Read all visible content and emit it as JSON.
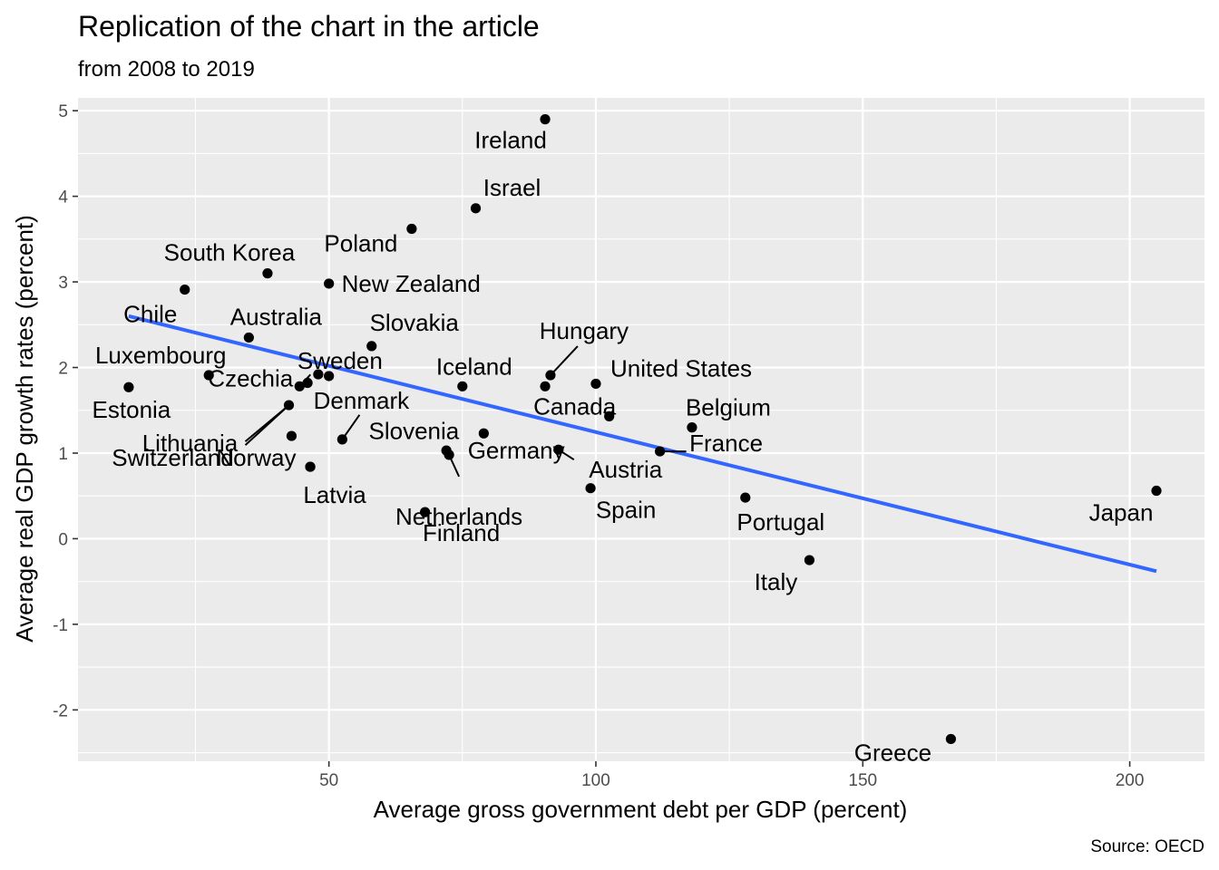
{
  "chart_data": {
    "type": "scatter",
    "title": "Replication of the chart in the article",
    "subtitle": "from 2008 to 2019",
    "xlabel": "Average gross government debt per GDP (percent)",
    "ylabel": "Average real GDP growth rates (percent)",
    "caption": "Source: OECD",
    "xlim": [
      3,
      214
    ],
    "ylim": [
      -2.6,
      5.15
    ],
    "x_ticks": [
      50,
      100,
      150,
      200
    ],
    "y_ticks": [
      -2,
      -1,
      0,
      1,
      2,
      3,
      4,
      5
    ],
    "grid": true,
    "colors": {
      "panel_background": "#ebebeb",
      "grid": "#ffffff",
      "points": "#000000",
      "trend_line": "#3366ff"
    },
    "trend_line": {
      "x": [
        12.5,
        205
      ],
      "y": [
        2.6,
        -0.38
      ]
    },
    "points": [
      {
        "label": "Ireland",
        "x": 90.5,
        "y": 4.9
      },
      {
        "label": "Israel",
        "x": 77.5,
        "y": 3.86
      },
      {
        "label": "Poland",
        "x": 65.5,
        "y": 3.62
      },
      {
        "label": "South Korea",
        "x": 38.5,
        "y": 3.1
      },
      {
        "label": "New Zealand",
        "x": 50.0,
        "y": 2.98
      },
      {
        "label": "Chile",
        "x": 23.0,
        "y": 2.91
      },
      {
        "label": "Australia",
        "x": 35.0,
        "y": 2.35
      },
      {
        "label": "Slovakia",
        "x": 58.0,
        "y": 2.25
      },
      {
        "label": "Hungary",
        "x": 91.5,
        "y": 1.91
      },
      {
        "label": "Luxembourg",
        "x": 27.5,
        "y": 1.91
      },
      {
        "label": "Sweden",
        "x": 48.0,
        "y": 1.92
      },
      {
        "label": "",
        "x": 50.0,
        "y": 1.9
      },
      {
        "label": "United States",
        "x": 100.0,
        "y": 1.81
      },
      {
        "label": "",
        "x": 46.0,
        "y": 1.82
      },
      {
        "label": "Iceland",
        "x": 75.0,
        "y": 1.78
      },
      {
        "label": "",
        "x": 90.5,
        "y": 1.78
      },
      {
        "label": "Estonia",
        "x": 12.5,
        "y": 1.77
      },
      {
        "label": "Czechia",
        "x": 44.5,
        "y": 1.78
      },
      {
        "label": "Lithuania",
        "x": 42.5,
        "y": 1.56
      },
      {
        "label": "Canada",
        "x": 102.5,
        "y": 1.43
      },
      {
        "label": "Belgium",
        "x": 118.0,
        "y": 1.3
      },
      {
        "label": "Slovenia",
        "x": 79.0,
        "y": 1.23
      },
      {
        "label": "Norway",
        "x": 43.0,
        "y": 1.2
      },
      {
        "label": "Denmark",
        "x": 52.5,
        "y": 1.16
      },
      {
        "label": "Austria",
        "x": 93.0,
        "y": 1.04
      },
      {
        "label": "France",
        "x": 112.0,
        "y": 1.02
      },
      {
        "label": "Germany",
        "x": 72.0,
        "y": 1.03
      },
      {
        "label": "Netherlands",
        "x": 72.5,
        "y": 0.98
      },
      {
        "label": "Switzerland",
        "x": 46.5,
        "y": 0.84
      },
      {
        "label": "Spain",
        "x": 99.0,
        "y": 0.59
      },
      {
        "label": "Japan",
        "x": 205.0,
        "y": 0.56
      },
      {
        "label": "Portugal",
        "x": 128.0,
        "y": 0.48
      },
      {
        "label": "Finland",
        "x": 68.0,
        "y": 0.31
      },
      {
        "label": "Italy",
        "x": 140.0,
        "y": -0.25
      },
      {
        "label": "Greece",
        "x": 166.5,
        "y": -2.34
      },
      {
        "label": "Latvia",
        "x": 46.5,
        "y": 0.84
      }
    ]
  }
}
